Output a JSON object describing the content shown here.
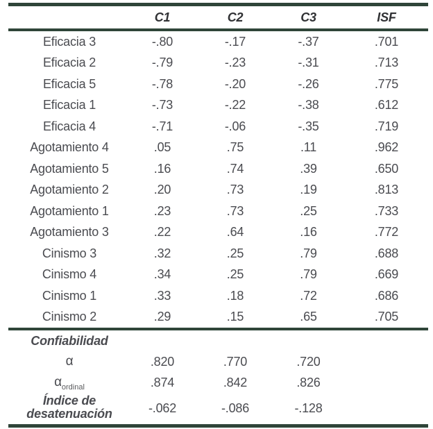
{
  "colors": {
    "rule": "#2F4539",
    "text": "#4A4B50",
    "strong_text": "#303134"
  },
  "table": {
    "columns": {
      "c1": "C1",
      "c2": "C2",
      "c3": "C3",
      "isf": "ISF"
    },
    "items": [
      {
        "label": "Eficacia 3",
        "c1": "-.80",
        "c2": "-.17",
        "c3": "-.37",
        "isf": ".701"
      },
      {
        "label": "Eficacia 2",
        "c1": "-.79",
        "c2": "-.23",
        "c3": "-.31",
        "isf": ".713"
      },
      {
        "label": "Eficacia 5",
        "c1": "-.78",
        "c2": "-.20",
        "c3": "-.26",
        "isf": ".775"
      },
      {
        "label": "Eficacia 1",
        "c1": "-.73",
        "c2": "-.22",
        "c3": "-.38",
        "isf": ".612"
      },
      {
        "label": "Eficacia 4",
        "c1": "-.71",
        "c2": "-.06",
        "c3": "-.35",
        "isf": ".719"
      },
      {
        "label": "Agotamiento 4",
        "c1": ".05",
        "c2": ".75",
        "c3": ".11",
        "isf": ".962"
      },
      {
        "label": "Agotamiento 5",
        "c1": ".16",
        "c2": ".74",
        "c3": ".39",
        "isf": ".650"
      },
      {
        "label": "Agotamiento 2",
        "c1": ".20",
        "c2": ".73",
        "c3": ".19",
        "isf": ".813"
      },
      {
        "label": "Agotamiento 1",
        "c1": ".23",
        "c2": ".73",
        "c3": ".25",
        "isf": ".733"
      },
      {
        "label": "Agotamiento 3",
        "c1": ".22",
        "c2": ".64",
        "c3": ".16",
        "isf": ".772"
      },
      {
        "label": "Cinismo 3",
        "c1": ".32",
        "c2": ".25",
        "c3": ".79",
        "isf": ".688"
      },
      {
        "label": "Cinismo 4",
        "c1": ".34",
        "c2": ".25",
        "c3": ".79",
        "isf": ".669"
      },
      {
        "label": "Cinismo 1",
        "c1": ".33",
        "c2": ".18",
        "c3": ".72",
        "isf": ".686"
      },
      {
        "label": "Cinismo 2",
        "c1": ".29",
        "c2": ".15",
        "c3": ".65",
        "isf": ".705"
      }
    ],
    "reliability": {
      "section_label": "Confiabilidad",
      "alpha": {
        "symbol": "α",
        "c1": ".820",
        "c2": ".770",
        "c3": ".720"
      },
      "alpha_ordinal": {
        "symbol": "α",
        "subscript": "ordinal",
        "c1": ".874",
        "c2": ".842",
        "c3": ".826"
      },
      "desatenuacion": {
        "label": "Índice de desatenuación",
        "c1": "-.062",
        "c2": "-.086",
        "c3": "-.128"
      }
    }
  }
}
